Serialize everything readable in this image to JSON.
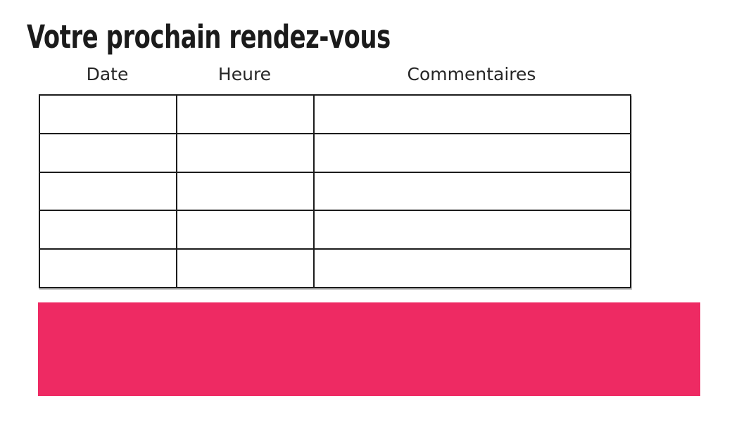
{
  "page": {
    "title": "Votre prochain rendez-vous",
    "background_color": "#ffffff",
    "title_color": "#1b1b1b"
  },
  "table": {
    "column_headers": [
      "Date",
      "Heure",
      "Commentaires"
    ],
    "rows": [
      [
        "",
        "",
        ""
      ],
      [
        "",
        "",
        ""
      ],
      [
        "",
        "",
        ""
      ],
      [
        "",
        "",
        ""
      ],
      [
        "",
        "",
        ""
      ]
    ],
    "border_color": "#1c1c1c"
  },
  "banner": {
    "color": "#ee2a63"
  }
}
